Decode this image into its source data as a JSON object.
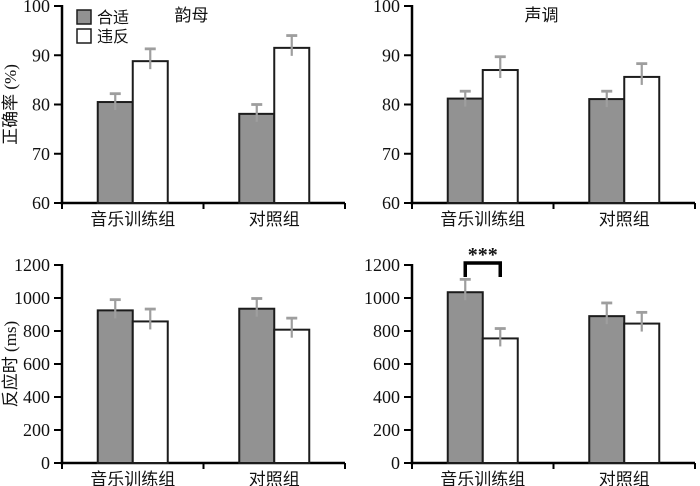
{
  "colors": {
    "background": "#ffffff",
    "bar_fill_suitable": "#929292",
    "bar_fill_violation": "#ffffff",
    "bar_border": "#1c1c1c",
    "error_bar": "#9e9e9e",
    "axis": "#000000"
  },
  "legend": {
    "items": [
      {
        "label": "合适",
        "swatch": "gray-filled-square"
      },
      {
        "label": "违反",
        "swatch": "white-open-square"
      }
    ]
  },
  "chart_data": [
    {
      "type": "bar",
      "id": "accuracy-vowel",
      "row": "top",
      "title": "韵母",
      "ylabel": "正确率 (%)",
      "ylim": [
        60,
        100
      ],
      "yticks": [
        60,
        70,
        80,
        90,
        100
      ],
      "categories": [
        "音乐训练组",
        "对照组"
      ],
      "series": [
        {
          "name": "合适",
          "values": [
            80.5,
            78.1
          ],
          "errors": [
            1.7,
            1.9
          ]
        },
        {
          "name": "违反",
          "values": [
            88.8,
            91.5
          ],
          "errors": [
            2.5,
            2.5
          ]
        }
      ],
      "show_legend": true
    },
    {
      "type": "bar",
      "id": "accuracy-tone",
      "row": "top",
      "title": "声调",
      "ylabel": "",
      "ylim": [
        60,
        100
      ],
      "yticks": [
        60,
        70,
        80,
        90,
        100
      ],
      "categories": [
        "音乐训练组",
        "对照组"
      ],
      "series": [
        {
          "name": "合适",
          "values": [
            81.2,
            81.1
          ],
          "errors": [
            1.5,
            1.6
          ]
        },
        {
          "name": "违反",
          "values": [
            87.0,
            85.6
          ],
          "errors": [
            2.7,
            2.7
          ]
        }
      ],
      "show_legend": false
    },
    {
      "type": "bar",
      "id": "reaction-time-vowel",
      "row": "bottom",
      "title": "",
      "ylabel": "反应时 (ms)",
      "ylim": [
        0,
        1200
      ],
      "yticks": [
        0,
        200,
        400,
        600,
        800,
        1000,
        1200
      ],
      "categories": [
        "音乐训练组",
        "对照组"
      ],
      "series": [
        {
          "name": "合适",
          "values": [
            925,
            935
          ],
          "errors": [
            65,
            62
          ]
        },
        {
          "name": "违反",
          "values": [
            858,
            808
          ],
          "errors": [
            75,
            70
          ]
        }
      ],
      "show_legend": false
    },
    {
      "type": "bar",
      "id": "reaction-time-tone",
      "row": "bottom",
      "title": "",
      "ylabel": "",
      "ylim": [
        0,
        1200
      ],
      "yticks": [
        0,
        200,
        400,
        600,
        800,
        1000,
        1200
      ],
      "categories": [
        "音乐训练组",
        "对照组"
      ],
      "series": [
        {
          "name": "合适",
          "values": [
            1035,
            890
          ],
          "errors": [
            78,
            80
          ]
        },
        {
          "name": "违反",
          "values": [
            755,
            845
          ],
          "errors": [
            60,
            68
          ]
        }
      ],
      "show_legend": false,
      "significance": {
        "category_index": 0,
        "label": "***"
      }
    }
  ]
}
